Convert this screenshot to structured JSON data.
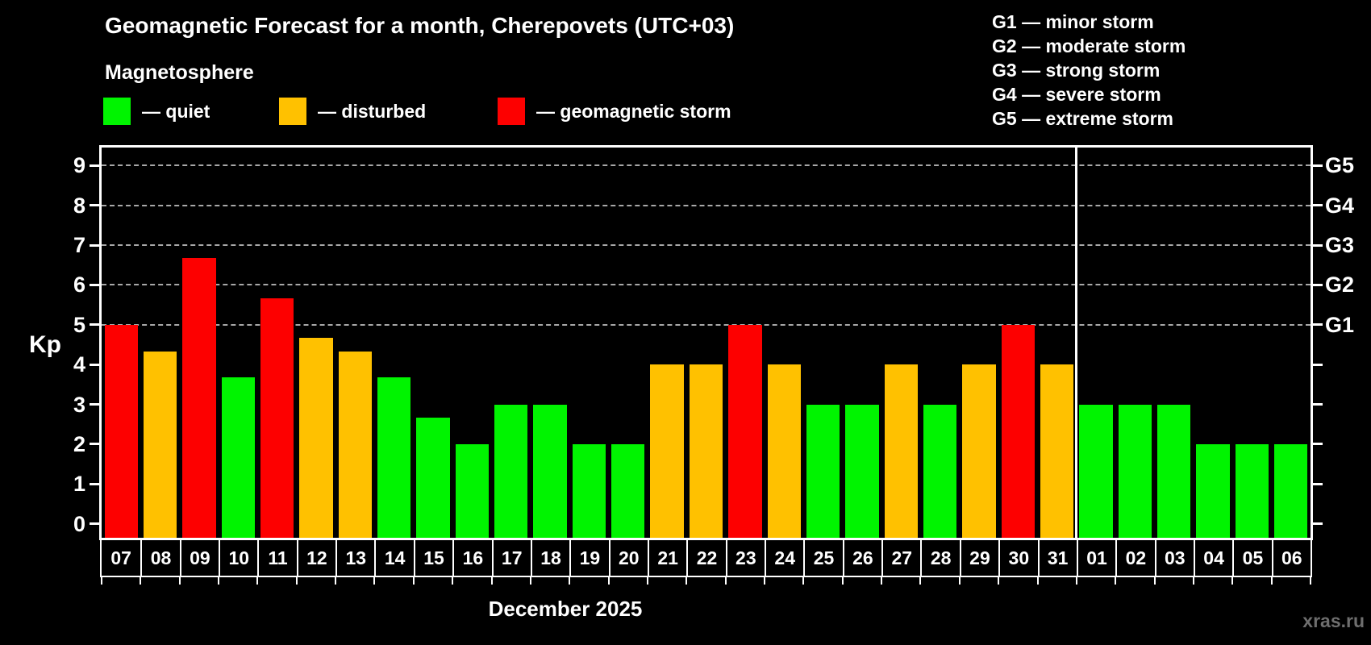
{
  "header": {
    "title": "Geomagnetic Forecast for a month, Cherepovets (UTC+03)",
    "subtitle": "Magnetosphere"
  },
  "legend": [
    {
      "label": "— quiet",
      "status": "quiet",
      "color": "#00f400"
    },
    {
      "label": "— disturbed",
      "status": "disturbed",
      "color": "#ffc100"
    },
    {
      "label": "— geomagnetic storm",
      "status": "storm",
      "color": "#fd0000"
    }
  ],
  "storm_scale_legend": [
    "G1 — minor storm",
    "G2 — moderate storm",
    "G3 — strong storm",
    "G4 — severe storm",
    "G5 — extreme storm"
  ],
  "watermark": "xras.ru",
  "chart_data": {
    "type": "bar",
    "title": "Geomagnetic Forecast for a month, Cherepovets (UTC+03)",
    "ylabel": "Kp",
    "xlabel": "December 2025",
    "ylim": [
      0,
      9
    ],
    "yticks": [
      0,
      1,
      2,
      3,
      4,
      5,
      6,
      7,
      8,
      9
    ],
    "gridlines_kp": [
      5,
      6,
      7,
      8,
      9
    ],
    "grid": "dashed, only at Kp 5-9",
    "legend_position": "top",
    "categories": [
      "07",
      "08",
      "09",
      "10",
      "11",
      "12",
      "13",
      "14",
      "15",
      "16",
      "17",
      "18",
      "19",
      "20",
      "21",
      "22",
      "23",
      "24",
      "25",
      "26",
      "27",
      "28",
      "29",
      "30",
      "31",
      "01",
      "02",
      "03",
      "04",
      "05",
      "06"
    ],
    "values": [
      5.0,
      4.33,
      6.67,
      3.67,
      5.67,
      4.67,
      4.33,
      3.67,
      2.67,
      2.0,
      3.0,
      3.0,
      2.0,
      2.0,
      4.0,
      4.0,
      5.0,
      4.0,
      3.0,
      3.0,
      4.0,
      3.0,
      4.0,
      5.0,
      4.0,
      3.0,
      3.0,
      3.0,
      2.0,
      2.0,
      2.0
    ],
    "statuses": [
      "storm",
      "disturbed",
      "storm",
      "quiet",
      "storm",
      "disturbed",
      "disturbed",
      "quiet",
      "quiet",
      "quiet",
      "quiet",
      "quiet",
      "quiet",
      "quiet",
      "disturbed",
      "disturbed",
      "storm",
      "disturbed",
      "quiet",
      "quiet",
      "disturbed",
      "quiet",
      "disturbed",
      "storm",
      "disturbed",
      "quiet",
      "quiet",
      "quiet",
      "quiet",
      "quiet",
      "quiet"
    ],
    "colors": {
      "quiet": "#00f400",
      "disturbed": "#ffc100",
      "storm": "#fd0000"
    },
    "right_axis_labels": [
      {
        "label": "G1",
        "kp": 5
      },
      {
        "label": "G2",
        "kp": 6
      },
      {
        "label": "G3",
        "kp": 7
      },
      {
        "label": "G4",
        "kp": 8
      },
      {
        "label": "G5",
        "kp": 9
      }
    ],
    "month_divider_after_index": 24
  }
}
